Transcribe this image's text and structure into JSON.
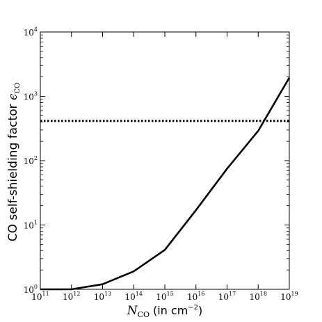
{
  "chart_data": {
    "type": "line",
    "xscale": "log",
    "yscale": "log",
    "xlim": [
      100000000000.0,
      1e+19
    ],
    "ylim": [
      1,
      10000
    ],
    "xlabel": {
      "symbol": "N",
      "symbol_sub": "CO",
      "text": "(in cm",
      "superscript": "−2",
      "close": ")"
    },
    "ylabel": {
      "text": "CO self-shielding factor ",
      "symbol": "ϵ",
      "symbol_sub": "CO"
    },
    "x_ticks": [
      {
        "base": "10",
        "exp": "11",
        "value": 100000000000.0
      },
      {
        "base": "10",
        "exp": "12",
        "value": 1000000000000.0
      },
      {
        "base": "10",
        "exp": "13",
        "value": 10000000000000.0
      },
      {
        "base": "10",
        "exp": "14",
        "value": 100000000000000.0
      },
      {
        "base": "10",
        "exp": "15",
        "value": 1000000000000000.0
      },
      {
        "base": "10",
        "exp": "16",
        "value": 1e+16
      },
      {
        "base": "10",
        "exp": "17",
        "value": 1e+17
      },
      {
        "base": "10",
        "exp": "18",
        "value": 1e+18
      },
      {
        "base": "10",
        "exp": "19",
        "value": 1e+19
      }
    ],
    "y_ticks": [
      {
        "base": "10",
        "exp": "0",
        "value": 1
      },
      {
        "base": "10",
        "exp": "1",
        "value": 10
      },
      {
        "base": "10",
        "exp": "2",
        "value": 100
      },
      {
        "base": "10",
        "exp": "3",
        "value": 1000
      },
      {
        "base": "10",
        "exp": "4",
        "value": 10000
      }
    ],
    "series": [
      {
        "style": "solid",
        "x": [
          100000000000.0,
          1000000000000.0,
          10000000000000.0,
          100000000000000.0,
          1000000000000000.0,
          1e+16,
          1e+17,
          1e+18,
          1e+19
        ],
        "y": [
          1.0,
          1.0,
          1.2,
          1.9,
          4.1,
          17,
          75,
          290,
          1950
        ]
      },
      {
        "style": "dotted",
        "x": [
          100000000000.0,
          1e+19
        ],
        "y": [
          415,
          415
        ]
      }
    ],
    "grid": false,
    "legend": "none"
  }
}
